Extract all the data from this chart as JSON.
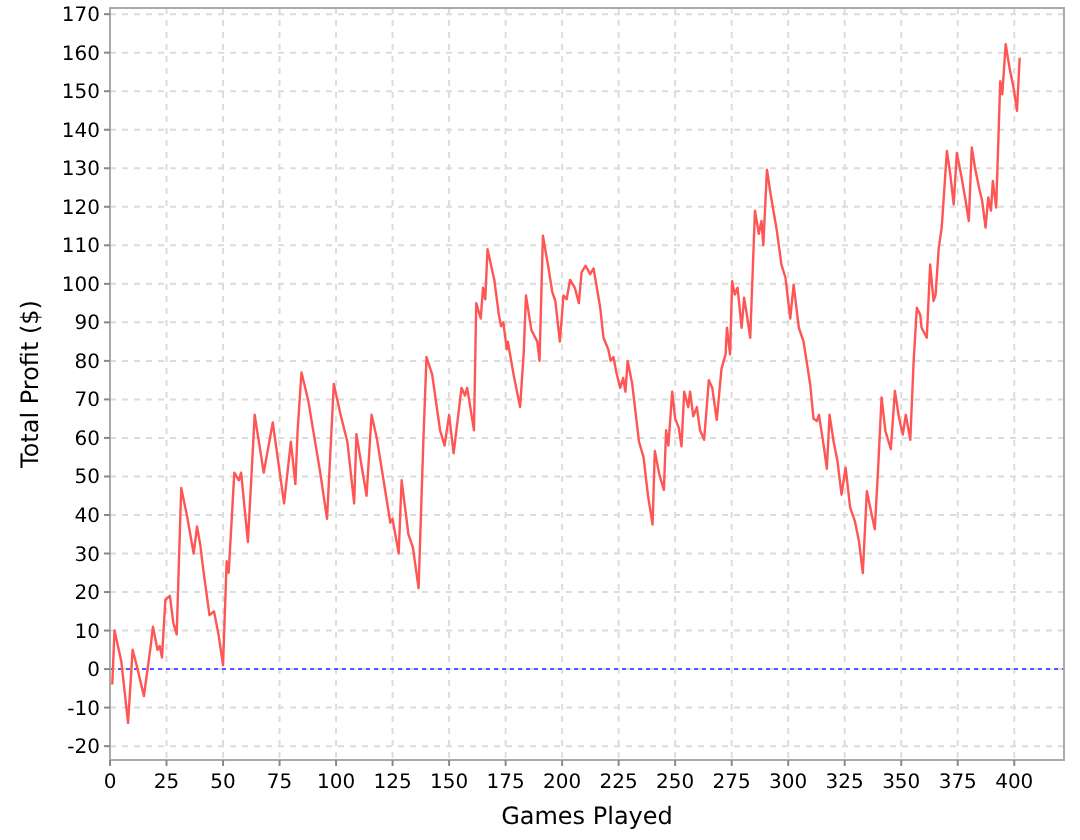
{
  "chart_data": {
    "type": "line",
    "xlabel": "Games Played",
    "ylabel": "Total Profit ($)",
    "xlim": [
      0,
      422
    ],
    "xticks": [
      0,
      25,
      50,
      75,
      100,
      125,
      150,
      175,
      200,
      225,
      250,
      275,
      300,
      325,
      350,
      375,
      400
    ],
    "ylim": [
      -23.6,
      171.6
    ],
    "yticks": [
      -20,
      -10,
      0,
      10,
      20,
      30,
      40,
      50,
      60,
      70,
      80,
      90,
      100,
      110,
      120,
      130,
      140,
      150,
      160,
      170
    ],
    "grid": true,
    "marker": "none",
    "line_style": "solid",
    "ref_lines": [
      {
        "axis": "y",
        "value": 0,
        "color": "#5555ff",
        "line_style": "dotted"
      }
    ],
    "series": [
      {
        "color": "#ff5555",
        "x": [
          1,
          2,
          5,
          8,
          10,
          12,
          15,
          18,
          19,
          21,
          22,
          23,
          24.5,
          26.5,
          28,
          29.5,
          31.5,
          34,
          37,
          38.5,
          40,
          41,
          44,
          46,
          48,
          50,
          51.6,
          52.5,
          55,
          57,
          58,
          61,
          64,
          68,
          72,
          77,
          80,
          82,
          83,
          84.7,
          87.6,
          93,
          96,
          99,
          102,
          105,
          108,
          109,
          111.5,
          113.5,
          115.7,
          118,
          121,
          124,
          125,
          127.7,
          129,
          132,
          134,
          136.5,
          138.6,
          140,
          142.5,
          146,
          148,
          150,
          152,
          155.5,
          157,
          158,
          161,
          162,
          164,
          165,
          166,
          167,
          170,
          172,
          173,
          174,
          175.5,
          176,
          178.5,
          181.4,
          183,
          184,
          186.4,
          189,
          190,
          191.5,
          194,
          195.6,
          197,
          199,
          200.6,
          202,
          203.5,
          205.6,
          207.4,
          208.6,
          210.4,
          212.4,
          213.9,
          216.8,
          218.3,
          220.4,
          221.5,
          222.7,
          224,
          225.7,
          227,
          228,
          229,
          231,
          234,
          236,
          238,
          240,
          241,
          243,
          245,
          246,
          247,
          248.7,
          250,
          251.6,
          252.8,
          254,
          255.8,
          256.6,
          258,
          259.6,
          261,
          262.8,
          264.9,
          266.4,
          268.4,
          270.5,
          272.3,
          272.9,
          274.3,
          275.2,
          276.4,
          277.6,
          279.4,
          280.5,
          281.7,
          283.2,
          285.3,
          287,
          288.2,
          289,
          290.6,
          292.3,
          295,
          297,
          298.8,
          300.9,
          302.4,
          304.7,
          306.8,
          309.7,
          311.2,
          312.7,
          313.6,
          315.7,
          317.1,
          318.3,
          320.1,
          321.8,
          323.6,
          325.4,
          327.4,
          329.5,
          331.3,
          333,
          334.8,
          336.3,
          338.3,
          339.8,
          341.3,
          343,
          345.4,
          347.2,
          349,
          350.7,
          352,
          354,
          355.5,
          356.9,
          358.4,
          359,
          361.3,
          362.8,
          364.3,
          365.2,
          366.6,
          367.9,
          370.2,
          371.7,
          373.2,
          374.6,
          376.7,
          378.5,
          379.9,
          381.2,
          382.6,
          384.4,
          385.8,
          387.3,
          388.5,
          389.7,
          390.5,
          392,
          393.8,
          394.7,
          396.2,
          397.9,
          399.7,
          401.2,
          402.4
        ],
        "values": [
          -4,
          10,
          2,
          -14,
          5,
          0.5,
          -7,
          6,
          11,
          5,
          6,
          3,
          18,
          19,
          12,
          9,
          47,
          40,
          30,
          37,
          32,
          27,
          14,
          15,
          9,
          1,
          28,
          25,
          51,
          49,
          51,
          33,
          66,
          51,
          64,
          43,
          59,
          48,
          62,
          77,
          70,
          51,
          39,
          74,
          66,
          59,
          43,
          61,
          52,
          45,
          66,
          60,
          49,
          38,
          39,
          30,
          49,
          35,
          31.5,
          21,
          59,
          81,
          76.5,
          62,
          58,
          66,
          56,
          73,
          71,
          73,
          62,
          95,
          91,
          99,
          96,
          109,
          101,
          92,
          89,
          90,
          83,
          85,
          76.5,
          68,
          82,
          97,
          88,
          85,
          80,
          112.5,
          104,
          98,
          95.5,
          85,
          97,
          96,
          101,
          99,
          95,
          103,
          104.7,
          102.5,
          104,
          94,
          86,
          83,
          80,
          81,
          77,
          73,
          75.6,
          72,
          80,
          74,
          59,
          55,
          45,
          37.5,
          56.6,
          50.5,
          46.5,
          62,
          58,
          72,
          65,
          62.6,
          57.8,
          72,
          68,
          72,
          65.6,
          68,
          62,
          59.5,
          75,
          73,
          64.7,
          78,
          81.7,
          88.6,
          81.7,
          100.7,
          97.2,
          99,
          88.6,
          96.4,
          92,
          86,
          119,
          113,
          116.3,
          110,
          129.6,
          123,
          113.7,
          105,
          101.6,
          91,
          99.8,
          88.6,
          85,
          74,
          65,
          64.4,
          66,
          58,
          52,
          66,
          59,
          54,
          45.3,
          52.3,
          41.9,
          38.4,
          33.2,
          24.9,
          46.2,
          41.9,
          36.3,
          52.3,
          70.5,
          61.8,
          57.1,
          72.2,
          65.3,
          60.9,
          66,
          59.5,
          80,
          93.8,
          92,
          88.6,
          86,
          105,
          95.5,
          97.2,
          109.4,
          114.6,
          134.5,
          128.4,
          120.6,
          134,
          127.6,
          121.5,
          116.3,
          135.4,
          130.2,
          125,
          121.5,
          114.6,
          122.4,
          119,
          126.7,
          119.8,
          152.6,
          149.2,
          162.2,
          156.1,
          150.9,
          144.9,
          158.7
        ]
      }
    ]
  }
}
